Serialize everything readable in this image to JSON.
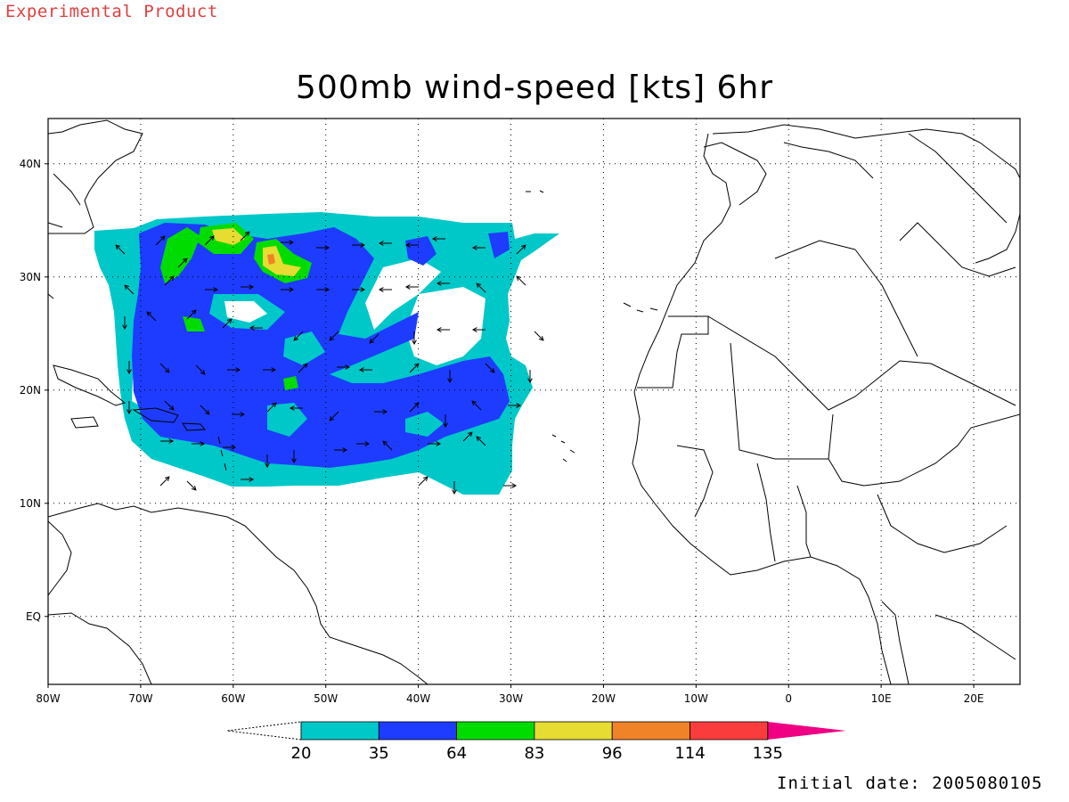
{
  "header": {
    "experimental_label": "Experimental Product",
    "title": "500mb wind-speed [kts] 6hr"
  },
  "footer": {
    "initial_date": "Initial date: 2005080105"
  },
  "map": {
    "lon_range": [
      -80,
      25
    ],
    "lat_range": [
      -6,
      44
    ],
    "x_ticks": [
      {
        "lon": -80,
        "label": "80W"
      },
      {
        "lon": -70,
        "label": "70W"
      },
      {
        "lon": -60,
        "label": "60W"
      },
      {
        "lon": -50,
        "label": "50W"
      },
      {
        "lon": -40,
        "label": "40W"
      },
      {
        "lon": -30,
        "label": "30W"
      },
      {
        "lon": -20,
        "label": "20W"
      },
      {
        "lon": -10,
        "label": "10W"
      },
      {
        "lon": 0,
        "label": "0"
      },
      {
        "lon": 10,
        "label": "10E"
      },
      {
        "lon": 20,
        "label": "20E"
      }
    ],
    "y_ticks": [
      {
        "lat": 40,
        "label": "40N"
      },
      {
        "lat": 30,
        "label": "30N"
      },
      {
        "lat": 20,
        "label": "20N"
      },
      {
        "lat": 10,
        "label": "10N"
      },
      {
        "lat": 0,
        "label": "EQ"
      }
    ],
    "grid": true
  },
  "colorbar": {
    "labels": [
      "20",
      "35",
      "64",
      "83",
      "96",
      "114",
      "135"
    ],
    "colors": [
      "#00c8c8",
      "#1e3cff",
      "#00dc00",
      "#e6dc32",
      "#f08228",
      "#fa3c3c",
      "#f00082"
    ]
  }
}
